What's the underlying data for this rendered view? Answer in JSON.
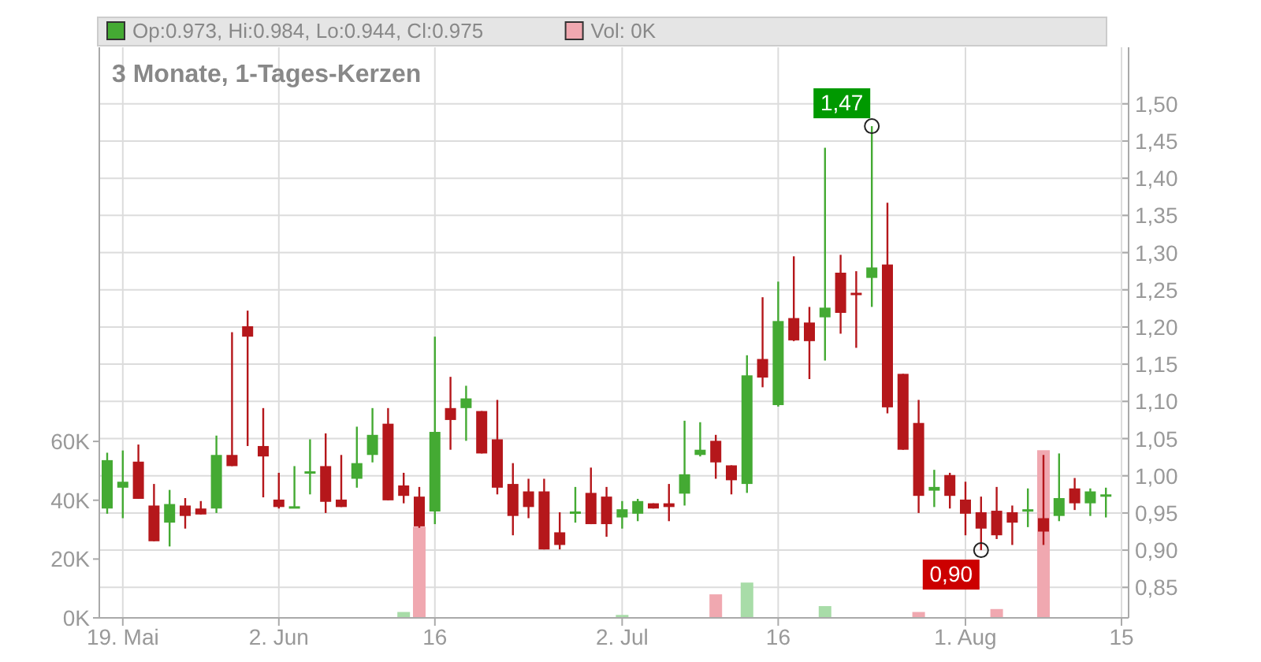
{
  "chart_data": {
    "type": "candlestick",
    "title": "3 Monate, 1-Tages-Kerzen",
    "categories": [
      null,
      "19. Mai",
      null,
      null,
      null,
      null,
      null,
      null,
      null,
      null,
      null,
      "2. Jun",
      null,
      null,
      null,
      null,
      null,
      null,
      null,
      null,
      null,
      "16",
      null,
      null,
      null,
      null,
      null,
      null,
      null,
      null,
      null,
      null,
      null,
      "2. Jul",
      null,
      null,
      null,
      null,
      null,
      null,
      null,
      null,
      null,
      "16",
      null,
      null,
      null,
      null,
      null,
      null,
      null,
      null,
      null,
      null,
      null,
      "1. Aug",
      null,
      null,
      null,
      null,
      null,
      null,
      null,
      null,
      null,
      "15"
    ],
    "series": [
      {
        "name": "Op:0.973, Hi:0.984, Lo:0.944, Cl:0.975",
        "color": "#44aa33",
        "colors": [
          "#44aa33",
          "#44aa33",
          "#b5171b",
          "#b5171b",
          "#44aa33",
          "#b5171b",
          "#b5171b",
          "#44aa33",
          "#b5171b",
          "#b5171b",
          "#b5171b",
          "#b5171b",
          "#44aa33",
          "#44aa33",
          "#b5171b",
          "#b5171b",
          "#44aa33",
          "#44aa33",
          "#b5171b",
          "#b5171b",
          "#b5171b",
          "#44aa33",
          "#b5171b",
          "#44aa33",
          "#b5171b",
          "#b5171b",
          "#b5171b",
          "#b5171b",
          "#b5171b",
          "#b5171b",
          "#44aa33",
          "#b5171b",
          "#b5171b",
          "#44aa33",
          "#44aa33",
          "#b5171b",
          "#b5171b",
          "#44aa33",
          "#44aa33",
          "#b5171b",
          "#b5171b",
          "#44aa33",
          "#b5171b",
          "#44aa33",
          "#b5171b",
          "#b5171b",
          "#44aa33",
          "#b5171b",
          "#b5171b",
          "#44aa33",
          "#b5171b",
          "#b5171b",
          "#b5171b",
          "#44aa33",
          "#b5171b",
          "#b5171b",
          "#b5171b",
          "#b5171b",
          "#b5171b",
          "#44aa33",
          "#b5171b",
          "#44aa33",
          "#b5171b",
          "#44aa33",
          "#44aa33",
          null
        ],
        "ohlc": [
          [
            0.956,
            1.031,
            0.949,
            1.021
          ],
          [
            0.984,
            1.034,
            0.943,
            0.992
          ],
          [
            1.019,
            1.042,
            0.969,
            0.969
          ],
          [
            0.96,
            0.989,
            0.912,
            0.912
          ],
          [
            0.937,
            0.981,
            0.905,
            0.962
          ],
          [
            0.96,
            0.97,
            0.929,
            0.946
          ],
          [
            0.956,
            0.966,
            0.948,
            0.948
          ],
          [
            0.956,
            1.054,
            0.95,
            1.028
          ],
          [
            1.028,
            1.193,
            1.013,
            1.013
          ],
          [
            1.201,
            1.222,
            1.04,
            1.187
          ],
          [
            1.04,
            1.091,
            0.971,
            1.026
          ],
          [
            0.968,
            1.004,
            0.956,
            0.958
          ],
          [
            0.958,
            1.013,
            0.958,
            0.959
          ],
          [
            1.005,
            1.049,
            0.975,
            1.006
          ],
          [
            1.013,
            1.057,
            0.95,
            0.965
          ],
          [
            0.968,
            1.028,
            0.958,
            0.958
          ],
          [
            0.996,
            1.066,
            0.984,
            1.017
          ],
          [
            1.028,
            1.091,
            1.018,
            1.055
          ],
          [
            1.07,
            1.091,
            0.967,
            0.967
          ],
          [
            0.987,
            1.004,
            0.963,
            0.973
          ],
          [
            0.972,
            0.985,
            0.93,
            0.932
          ],
          [
            0.952,
            1.187,
            0.935,
            1.059
          ],
          [
            1.091,
            1.133,
            1.035,
            1.075
          ],
          [
            1.091,
            1.121,
            1.047,
            1.104
          ],
          [
            1.087,
            1.087,
            1.03,
            1.03
          ],
          [
            1.049,
            1.102,
            0.975,
            0.984
          ],
          [
            0.989,
            1.017,
            0.92,
            0.946
          ],
          [
            0.979,
            0.996,
            0.943,
            0.958
          ],
          [
            0.979,
            0.996,
            0.901,
            0.901
          ],
          [
            0.924,
            0.951,
            0.901,
            0.907
          ],
          [
            0.951,
            0.985,
            0.937,
            0.952
          ],
          [
            0.977,
            1.011,
            0.935,
            0.935
          ],
          [
            0.972,
            0.985,
            0.918,
            0.935
          ],
          [
            0.944,
            0.966,
            0.929,
            0.955
          ],
          [
            0.949,
            0.969,
            0.939,
            0.966
          ],
          [
            0.963,
            0.963,
            0.956,
            0.956
          ],
          [
            0.963,
            0.989,
            0.939,
            0.958
          ],
          [
            0.976,
            1.074,
            0.96,
            1.002
          ],
          [
            1.028,
            1.072,
            1.026,
            1.035
          ],
          [
            1.047,
            1.055,
            0.996,
            1.018
          ],
          [
            1.014,
            1.014,
            0.975,
            0.994
          ],
          [
            0.989,
            1.162,
            0.977,
            1.135
          ],
          [
            1.157,
            1.24,
            1.119,
            1.132
          ],
          [
            1.095,
            1.261,
            1.093,
            1.208
          ],
          [
            1.212,
            1.295,
            1.181,
            1.182
          ],
          [
            1.206,
            1.227,
            1.13,
            1.181
          ],
          [
            1.213,
            1.441,
            1.155,
            1.226
          ],
          [
            1.273,
            1.297,
            1.191,
            1.219
          ],
          [
            1.246,
            1.275,
            1.172,
            1.243
          ],
          [
            1.266,
            1.47,
            1.227,
            1.28
          ],
          [
            1.284,
            1.367,
            1.084,
            1.092
          ],
          [
            1.137,
            1.137,
            1.035,
            1.035
          ],
          [
            1.071,
            1.102,
            0.95,
            0.973
          ],
          [
            0.98,
            1.008,
            0.958,
            0.985
          ],
          [
            1.001,
            1.004,
            0.956,
            0.973
          ],
          [
            0.968,
            0.992,
            0.92,
            0.949
          ],
          [
            0.951,
            0.972,
            0.9,
            0.929
          ],
          [
            0.953,
            0.985,
            0.915,
            0.92
          ],
          [
            0.951,
            0.96,
            0.907,
            0.937
          ],
          [
            0.954,
            0.983,
            0.931,
            0.955
          ],
          [
            0.943,
            1.028,
            0.907,
            0.925
          ],
          [
            0.946,
            1.03,
            0.939,
            0.97
          ],
          [
            0.983,
            0.997,
            0.954,
            0.963
          ],
          [
            0.963,
            0.983,
            0.946,
            0.979
          ],
          [
            0.973,
            0.984,
            0.944,
            0.975
          ],
          null
        ]
      },
      {
        "name": "Vol: 0K",
        "type": "bar",
        "axis": "y2",
        "color": "#f0a8b0",
        "colors": [
          "#f0a8b0",
          "#f0a8b0",
          "#f0a8b0",
          "#f0a8b0",
          "#f0a8b0",
          "#f0a8b0",
          "#f0a8b0",
          "#f0a8b0",
          "#f0a8b0",
          "#f0a8b0",
          "#f0a8b0",
          "#f0a8b0",
          "#f0a8b0",
          "#f0a8b0",
          "#f0a8b0",
          "#f0a8b0",
          "#f0a8b0",
          "#f0a8b0",
          "#f0a8b0",
          "#a8dca8",
          "#f0a8b0",
          "#f0a8b0",
          "#f0a8b0",
          "#f0a8b0",
          "#f0a8b0",
          "#f0a8b0",
          "#f0a8b0",
          "#f0a8b0",
          "#f0a8b0",
          "#f0a8b0",
          "#f0a8b0",
          "#f0a8b0",
          "#f0a8b0",
          "#a8dca8",
          "#f0a8b0",
          "#f0a8b0",
          "#f0a8b0",
          "#f0a8b0",
          "#f0a8b0",
          "#f0a8b0",
          "#f0a8b0",
          "#a8dca8",
          "#f0a8b0",
          "#f0a8b0",
          "#f0a8b0",
          "#f0a8b0",
          "#a8dca8",
          "#f0a8b0",
          "#f0a8b0",
          "#f0a8b0",
          "#f0a8b0",
          "#f0a8b0",
          "#f0a8b0",
          "#f0a8b0",
          "#f0a8b0",
          "#f0a8b0",
          "#f0a8b0",
          "#f0a8b0",
          "#f0a8b0",
          "#f0a8b0",
          "#f0a8b0",
          "#f0a8b0",
          "#f0a8b0",
          "#f0a8b0",
          "#f0a8b0",
          null
        ],
        "values": [
          0,
          0,
          0,
          0,
          0,
          0,
          0,
          0,
          0,
          0,
          0,
          0,
          0,
          0,
          0,
          0,
          0,
          0,
          0,
          2,
          31,
          0,
          0,
          0,
          0,
          0,
          0,
          0,
          0,
          0,
          0,
          0,
          0,
          1,
          0,
          0,
          0,
          0,
          0,
          8,
          0,
          12,
          0,
          0,
          0,
          0,
          4,
          0,
          0,
          0,
          0,
          0,
          2,
          0,
          0,
          0,
          0,
          3,
          0,
          0,
          57,
          0,
          0,
          0,
          0,
          null
        ]
      }
    ],
    "ylim": [
      0.809,
      1.576
    ],
    "yticks": [
      {
        "value": 0.85,
        "label": "0,85"
      },
      {
        "value": 0.9,
        "label": "0,90"
      },
      {
        "value": 0.95,
        "label": "0,95"
      },
      {
        "value": 1.0,
        "label": "1,00"
      },
      {
        "value": 1.05,
        "label": "1,05"
      },
      {
        "value": 1.1,
        "label": "1,10"
      },
      {
        "value": 1.15,
        "label": "1,15"
      },
      {
        "value": 1.2,
        "label": "1,20"
      },
      {
        "value": 1.25,
        "label": "1,25"
      },
      {
        "value": 1.3,
        "label": "1,30"
      },
      {
        "value": 1.35,
        "label": "1,35"
      },
      {
        "value": 1.4,
        "label": "1,40"
      },
      {
        "value": 1.45,
        "label": "1,45"
      },
      {
        "value": 1.5,
        "label": "1,50"
      }
    ],
    "y2lim": [
      0,
      194
    ],
    "y2ticks": [
      {
        "value": 0,
        "label": "0K"
      },
      {
        "value": 20,
        "label": "20K"
      },
      {
        "value": 40,
        "label": "40K"
      },
      {
        "value": 60,
        "label": "60K"
      }
    ],
    "grid": true,
    "legend": "top",
    "annotations": [
      "1,47",
      "0,90"
    ]
  }
}
